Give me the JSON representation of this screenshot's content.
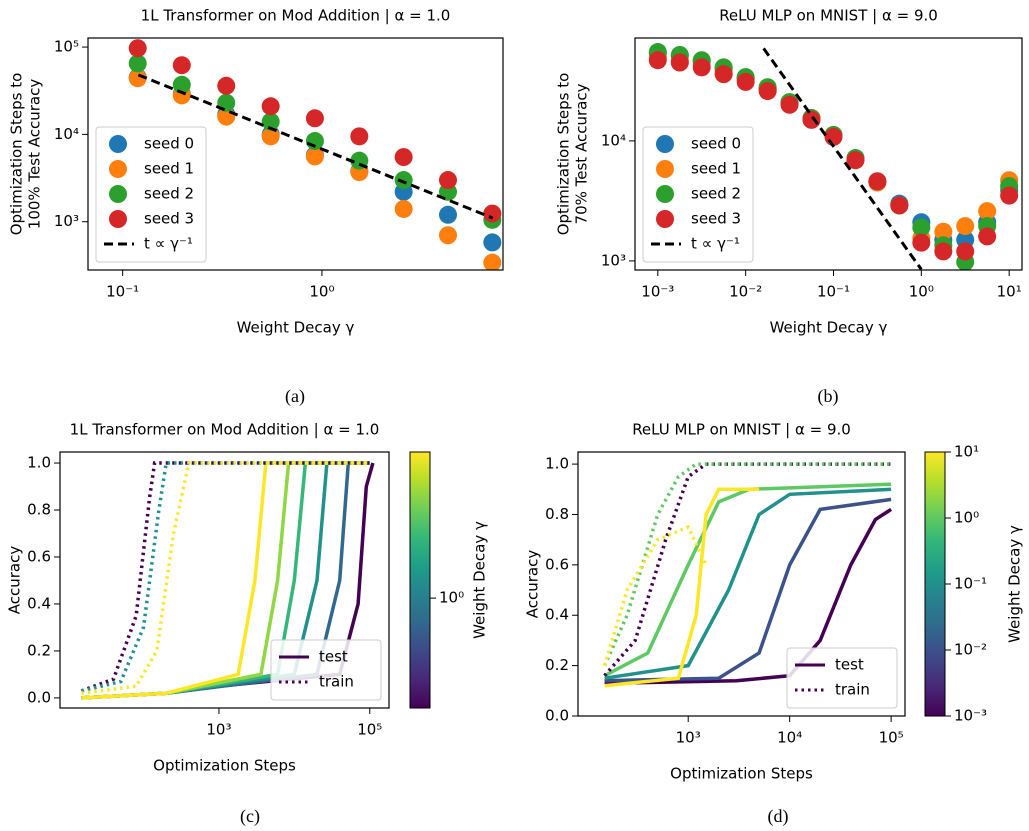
{
  "chart_data": [
    {
      "type": "scatter",
      "title": "1L Transformer on Mod Addition | α = 1.0",
      "caption": "(a)",
      "xlabel": "Weight Decay γ",
      "ylabel": [
        "Optimization Steps to",
        "100% Test Accuracy"
      ],
      "xscale": "log",
      "yscale": "log",
      "xlim": [
        0.067,
        8.1
      ],
      "ylim": [
        280,
        127000
      ],
      "xticks": [
        {
          "value": 0.1,
          "label": "10⁻¹"
        },
        {
          "value": 1,
          "label": "10⁰"
        }
      ],
      "yticks": [
        {
          "value": 1000,
          "label": "10³"
        },
        {
          "value": 10000,
          "label": "10⁴"
        },
        {
          "value": 100000,
          "label": "10⁵"
        }
      ],
      "legend_corner": "lower left",
      "series": [
        {
          "name": "seed 0",
          "color": "#1f77b4",
          "mode": "marker",
          "x": [
            0.119,
            0.198,
            0.331,
            0.553,
            0.922,
            1.54,
            2.57,
            4.29,
            7.16
          ],
          "values": [
            45000,
            29000,
            17000,
            10000,
            5800,
            3800,
            2200,
            1200,
            580
          ]
        },
        {
          "name": "seed 1",
          "color": "#ff7f0e",
          "mode": "marker",
          "x": [
            0.119,
            0.198,
            0.331,
            0.553,
            0.922,
            1.54,
            2.57,
            4.29,
            7.16
          ],
          "values": [
            44000,
            28000,
            16000,
            9500,
            5600,
            3700,
            1400,
            700,
            340
          ]
        },
        {
          "name": "seed 2",
          "color": "#2ca02c",
          "mode": "marker",
          "x": [
            0.119,
            0.198,
            0.331,
            0.553,
            0.922,
            1.54,
            2.57,
            4.29,
            7.16
          ],
          "values": [
            65000,
            37000,
            23000,
            14000,
            8400,
            5000,
            3000,
            2200,
            1050
          ]
        },
        {
          "name": "seed 3",
          "color": "#d62728",
          "mode": "marker",
          "x": [
            0.119,
            0.198,
            0.331,
            0.553,
            0.922,
            1.54,
            2.57,
            4.29,
            7.16
          ],
          "values": [
            97000,
            62000,
            36000,
            21000,
            15300,
            9500,
            5500,
            3000,
            1240
          ]
        },
        {
          "name": "t ∝ γ⁻¹",
          "color": "#000000",
          "mode": "line",
          "dash": "dashed",
          "x": [
            0.12,
            7.2
          ],
          "values": [
            48000,
            1100
          ]
        }
      ]
    },
    {
      "type": "scatter",
      "title": "ReLU MLP on MNIST | α = 9.0",
      "caption": "(b)",
      "xlabel": "Weight Decay γ",
      "ylabel": [
        "Optimization Steps to",
        "70% Test Accuracy"
      ],
      "xscale": "log",
      "yscale": "log",
      "xlim": [
        0.00055,
        14
      ],
      "ylim": [
        840,
        72000
      ],
      "xticks": [
        {
          "value": 0.001,
          "label": "10⁻³"
        },
        {
          "value": 0.01,
          "label": "10⁻²"
        },
        {
          "value": 0.1,
          "label": "10⁻¹"
        },
        {
          "value": 1,
          "label": "10⁰"
        },
        {
          "value": 10,
          "label": "10¹"
        }
      ],
      "yticks": [
        {
          "value": 1000,
          "label": "10³"
        },
        {
          "value": 10000,
          "label": "10⁴"
        }
      ],
      "legend_corner": "lower left",
      "series": [
        {
          "name": "seed 0",
          "color": "#1f77b4",
          "mode": "marker",
          "x": [
            0.001,
            0.00178,
            0.00316,
            0.00562,
            0.01,
            0.0178,
            0.0316,
            0.0562,
            0.1,
            0.178,
            0.316,
            0.562,
            1,
            1.78,
            3.16,
            5.62,
            10
          ],
          "values": [
            54000,
            51000,
            46000,
            40000,
            33000,
            27000,
            21000,
            15000,
            11000,
            7100,
            4600,
            3000,
            2100,
            1500,
            1500,
            2100,
            3900
          ]
        },
        {
          "name": "seed 1",
          "color": "#ff7f0e",
          "mode": "marker",
          "x": [
            0.001,
            0.00178,
            0.00316,
            0.00562,
            0.01,
            0.0178,
            0.0316,
            0.0562,
            0.1,
            0.178,
            0.316,
            0.562,
            1,
            1.78,
            3.16,
            5.62,
            10
          ],
          "values": [
            50000,
            47000,
            45000,
            39000,
            33000,
            27000,
            21000,
            15500,
            11200,
            7100,
            4500,
            2900,
            1550,
            1750,
            1950,
            2600,
            4700
          ]
        },
        {
          "name": "seed 2",
          "color": "#2ca02c",
          "mode": "marker",
          "x": [
            0.001,
            0.00178,
            0.00316,
            0.00562,
            0.01,
            0.0178,
            0.0316,
            0.0562,
            0.1,
            0.178,
            0.316,
            0.562,
            1,
            1.78,
            3.16,
            5.62,
            10
          ],
          "values": [
            55000,
            52000,
            47000,
            41000,
            34000,
            28000,
            21000,
            15500,
            11200,
            7200,
            4600,
            2900,
            1900,
            1350,
            980,
            1950,
            4200
          ]
        },
        {
          "name": "seed 3",
          "color": "#d62728",
          "mode": "marker",
          "x": [
            0.001,
            0.00178,
            0.00316,
            0.00562,
            0.01,
            0.0178,
            0.0316,
            0.0562,
            0.1,
            0.178,
            0.316,
            0.562,
            1,
            1.78,
            3.16,
            5.62,
            10
          ],
          "values": [
            47000,
            45000,
            41000,
            36000,
            31000,
            26000,
            20000,
            15000,
            10800,
            6900,
            4600,
            2900,
            1420,
            1200,
            1200,
            1600,
            3500
          ]
        },
        {
          "name": "t ∝ γ⁻¹",
          "color": "#000000",
          "mode": "line",
          "dash": "dashed",
          "x": [
            0.016,
            1.0
          ],
          "values": [
            59000,
            850
          ]
        }
      ]
    },
    {
      "type": "line",
      "title": "1L Transformer on Mod Addition | α = 1.0",
      "caption": "(c)",
      "xlabel": "Optimization Steps",
      "ylabel": [
        "Accuracy"
      ],
      "xscale": "log",
      "yscale": "linear",
      "xlim": [
        7.8,
        180000
      ],
      "ylim": [
        -0.043,
        1.047
      ],
      "xticks": [
        {
          "value": 1000,
          "label": "10³"
        },
        {
          "value": 100000,
          "label": "10⁵"
        }
      ],
      "yticks": [
        {
          "value": 0,
          "label": "0.0"
        },
        0.2,
        0.4,
        0.6,
        0.8,
        {
          "value": 1,
          "label": "1.0"
        }
      ],
      "legend_corner": "lower right",
      "legend": [
        {
          "name": "test",
          "color": "#440154",
          "dash": "solid"
        },
        {
          "name": "train",
          "color": "#440154",
          "dash": "dotted"
        }
      ],
      "colorbar": {
        "label": "Weight Decay γ",
        "lim": [
          0.2,
          8.5
        ],
        "ticks": [
          {
            "value": 1,
            "label": "10⁰"
          }
        ],
        "colors": [
          "#440154",
          "#482878",
          "#3e4989",
          "#31688e",
          "#26828e",
          "#1f9e89",
          "#35b779",
          "#6ece58",
          "#b5de2b",
          "#fde725"
        ]
      },
      "series": [
        {
          "color": "#440154",
          "mode": "line",
          "dash": "solid",
          "x": [
            15,
            200,
            1000,
            40000,
            70000,
            90000,
            110000
          ],
          "values": [
            0,
            0.02,
            0.05,
            0.1,
            0.4,
            0.9,
            1
          ]
        },
        {
          "color": "#31688e",
          "mode": "line",
          "dash": "solid",
          "x": [
            15,
            200,
            20000,
            40000,
            52000,
            100000
          ],
          "values": [
            0,
            0.02,
            0.1,
            0.5,
            1,
            1
          ]
        },
        {
          "color": "#21918c",
          "mode": "line",
          "dash": "solid",
          "x": [
            15,
            200,
            10000,
            20000,
            27000,
            100000
          ],
          "values": [
            0,
            0.02,
            0.1,
            0.5,
            1,
            1
          ]
        },
        {
          "color": "#35b779",
          "mode": "line",
          "dash": "solid",
          "x": [
            15,
            200,
            6000,
            10000,
            14000,
            100000
          ],
          "values": [
            0,
            0.02,
            0.1,
            0.5,
            1,
            1
          ]
        },
        {
          "color": "#90d743",
          "mode": "line",
          "dash": "solid",
          "x": [
            15,
            200,
            3600,
            6000,
            8400,
            100000
          ],
          "values": [
            0,
            0.02,
            0.1,
            0.5,
            1,
            1
          ]
        },
        {
          "color": "#fde725",
          "mode": "line",
          "dash": "solid",
          "x": [
            15,
            200,
            1800,
            3000,
            4200,
            100000
          ],
          "values": [
            0,
            0.02,
            0.1,
            0.5,
            1,
            1
          ]
        },
        {
          "color": "#440154",
          "mode": "line",
          "dash": "dotted",
          "x": [
            15,
            40,
            80,
            120,
            140,
            100000
          ],
          "values": [
            0.03,
            0.08,
            0.35,
            0.85,
            1,
            1
          ]
        },
        {
          "color": "#21918c",
          "mode": "line",
          "dash": "dotted",
          "x": [
            15,
            50,
            100,
            160,
            200,
            100000
          ],
          "values": [
            0.03,
            0.07,
            0.3,
            0.8,
            1,
            1
          ]
        },
        {
          "color": "#fde725",
          "mode": "line",
          "dash": "dotted",
          "x": [
            15,
            80,
            150,
            250,
            400,
            100000
          ],
          "values": [
            0.02,
            0.05,
            0.2,
            0.7,
            1,
            1
          ]
        }
      ]
    },
    {
      "type": "line",
      "title": "ReLU MLP on MNIST | α = 9.0",
      "caption": "(d)",
      "xlabel": "Optimization Steps",
      "ylabel": [
        "Accuracy"
      ],
      "xscale": "log",
      "yscale": "linear",
      "xlim": [
        82,
        137000
      ],
      "ylim": [
        0,
        1.048
      ],
      "xticks": [
        {
          "value": 1000,
          "label": "10³"
        },
        {
          "value": 10000,
          "label": "10⁴"
        },
        {
          "value": 100000,
          "label": "10⁵"
        }
      ],
      "yticks": [
        {
          "value": 0,
          "label": "0.0"
        },
        0.2,
        0.4,
        0.6,
        0.8,
        {
          "value": 1,
          "label": "1.0"
        }
      ],
      "legend_corner": "lower right",
      "legend": [
        {
          "name": "test",
          "color": "#440154",
          "dash": "solid"
        },
        {
          "name": "train",
          "color": "#440154",
          "dash": "dotted"
        }
      ],
      "colorbar": {
        "label": "Weight Decay γ",
        "lim": [
          0.001,
          10
        ],
        "ticks": [
          {
            "value": 0.001,
            "label": "10⁻³"
          },
          {
            "value": 0.01,
            "label": "10⁻²"
          },
          {
            "value": 0.1,
            "label": "10⁻¹"
          },
          {
            "value": 1,
            "label": "10⁰"
          },
          {
            "value": 10,
            "label": "10¹"
          }
        ],
        "colors": [
          "#440154",
          "#482878",
          "#3e4989",
          "#31688e",
          "#26828e",
          "#1f9e89",
          "#35b779",
          "#6ece58",
          "#b5de2b",
          "#fde725"
        ]
      },
      "series": [
        {
          "color": "#440154",
          "mode": "line",
          "dash": "solid",
          "x": [
            150,
            3000,
            10000,
            20000,
            40000,
            70000,
            100000
          ],
          "values": [
            0.13,
            0.14,
            0.16,
            0.3,
            0.6,
            0.78,
            0.82
          ]
        },
        {
          "color": "#3b528b",
          "mode": "line",
          "dash": "solid",
          "x": [
            150,
            2000,
            5000,
            10000,
            20000,
            100000
          ],
          "values": [
            0.14,
            0.15,
            0.25,
            0.6,
            0.82,
            0.86
          ]
        },
        {
          "color": "#21918c",
          "mode": "line",
          "dash": "solid",
          "x": [
            150,
            1000,
            2500,
            5000,
            10000,
            100000
          ],
          "values": [
            0.15,
            0.2,
            0.5,
            0.8,
            0.88,
            0.9
          ]
        },
        {
          "color": "#5ec962",
          "mode": "line",
          "dash": "solid",
          "x": [
            150,
            400,
            1000,
            2000,
            4000,
            100000
          ],
          "values": [
            0.16,
            0.25,
            0.6,
            0.85,
            0.9,
            0.92
          ]
        },
        {
          "color": "#fde725",
          "mode": "line",
          "dash": "solid",
          "x": [
            150,
            800,
            1200,
            1500,
            2000,
            5000
          ],
          "values": [
            0.12,
            0.15,
            0.4,
            0.8,
            0.9,
            0.9
          ]
        },
        {
          "color": "#440154",
          "mode": "line",
          "dash": "dotted",
          "x": [
            150,
            300,
            600,
            1000,
            1500,
            100000
          ],
          "values": [
            0.16,
            0.3,
            0.7,
            0.95,
            1,
            1
          ]
        },
        {
          "color": "#5ec962",
          "mode": "line",
          "dash": "dotted",
          "x": [
            150,
            250,
            500,
            800,
            1200,
            100000
          ],
          "values": [
            0.2,
            0.4,
            0.8,
            0.95,
            1,
            1
          ]
        },
        {
          "color": "#fde725",
          "mode": "line",
          "dash": "dotted",
          "x": [
            150,
            250,
            500,
            1000,
            1500
          ],
          "values": [
            0.2,
            0.5,
            0.7,
            0.75,
            0.6
          ]
        }
      ]
    }
  ]
}
